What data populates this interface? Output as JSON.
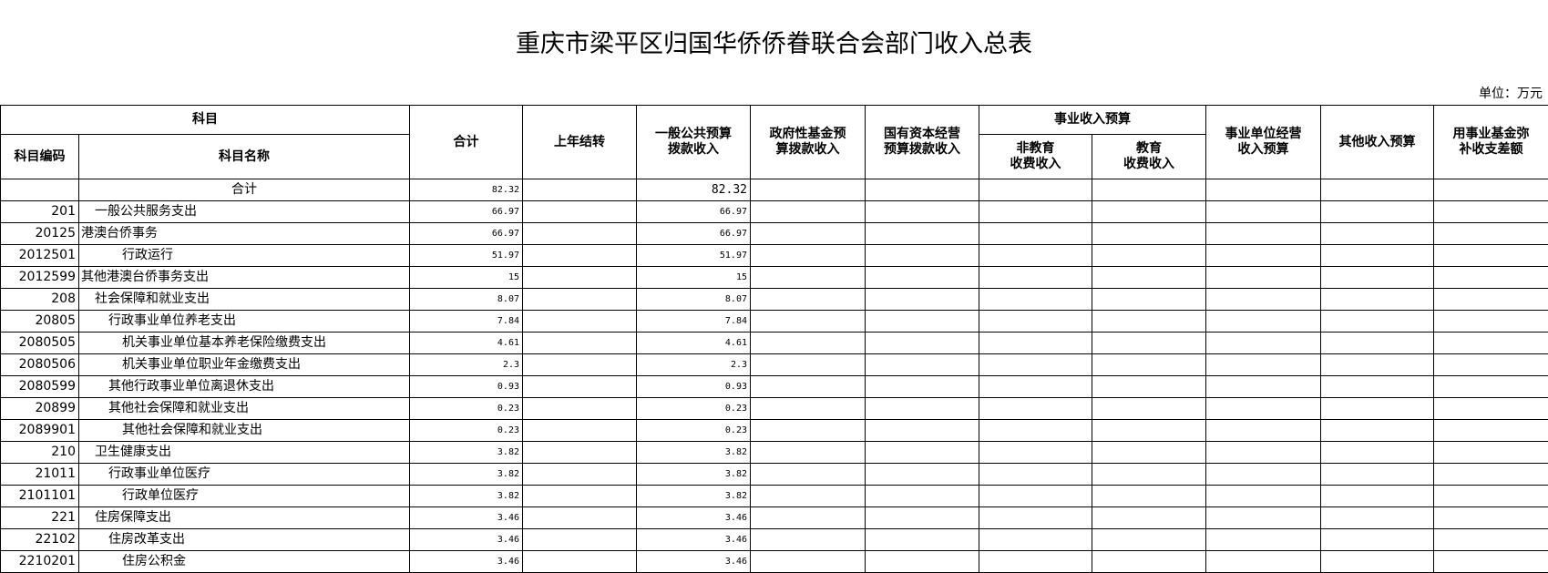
{
  "title": "重庆市梁平区归国华侨侨眷联合会部门收入总表",
  "unit": "单位：万元",
  "headers": {
    "subject": "科目",
    "code": "科目编码",
    "name": "科目名称",
    "total": "合计",
    "carryover": "上年结转",
    "general": "一般公共预算\n拨款收入",
    "govfund": "政府性基金预\n算拨款收入",
    "stateasset": "国有资本经营\n预算拨款收入",
    "business": "事业收入预算",
    "nonedu": "非教育\n收费收入",
    "edu": "教育\n收费收入",
    "operation": "事业单位经营\n收入预算",
    "other": "其他收入预算",
    "fund": "用事业基金弥\n补收支差额"
  },
  "rows": [
    {
      "code": "",
      "name": "合计",
      "indent": 0,
      "total": "82.32",
      "general": "82.32"
    },
    {
      "code": "201",
      "name": "一般公共服务支出",
      "indent": 1,
      "total": "66.97",
      "general": "66.97"
    },
    {
      "code": "20125",
      "name": "港澳台侨事务",
      "indent": 0,
      "total": "66.97",
      "general": "66.97"
    },
    {
      "code": "2012501",
      "name": "行政运行",
      "indent": 3,
      "total": "51.97",
      "general": "51.97"
    },
    {
      "code": "2012599",
      "name": "其他港澳台侨事务支出",
      "indent": 0,
      "total": "15",
      "general": "15"
    },
    {
      "code": "208",
      "name": "社会保障和就业支出",
      "indent": 1,
      "total": "8.07",
      "general": "8.07"
    },
    {
      "code": "20805",
      "name": "行政事业单位养老支出",
      "indent": 2,
      "total": "7.84",
      "general": "7.84"
    },
    {
      "code": "2080505",
      "name": "机关事业单位基本养老保险缴费支出",
      "indent": 3,
      "total": "4.61",
      "general": "4.61"
    },
    {
      "code": "2080506",
      "name": "机关事业单位职业年金缴费支出",
      "indent": 3,
      "total": "2.3",
      "general": "2.3"
    },
    {
      "code": "2080599",
      "name": "其他行政事业单位离退休支出",
      "indent": 2,
      "total": "0.93",
      "general": "0.93"
    },
    {
      "code": "20899",
      "name": "其他社会保障和就业支出",
      "indent": 2,
      "total": "0.23",
      "general": "0.23"
    },
    {
      "code": "2089901",
      "name": "其他社会保障和就业支出",
      "indent": 3,
      "total": "0.23",
      "general": "0.23"
    },
    {
      "code": "210",
      "name": "卫生健康支出",
      "indent": 1,
      "total": "3.82",
      "general": "3.82"
    },
    {
      "code": "21011",
      "name": "行政事业单位医疗",
      "indent": 2,
      "total": "3.82",
      "general": "3.82"
    },
    {
      "code": "2101101",
      "name": "行政单位医疗",
      "indent": 3,
      "total": "3.82",
      "general": "3.82"
    },
    {
      "code": "221",
      "name": "住房保障支出",
      "indent": 1,
      "total": "3.46",
      "general": "3.46"
    },
    {
      "code": "22102",
      "name": "住房改革支出",
      "indent": 2,
      "total": "3.46",
      "general": "3.46"
    },
    {
      "code": "2210201",
      "name": "住房公积金",
      "indent": 3,
      "total": "3.46",
      "general": "3.46"
    }
  ]
}
